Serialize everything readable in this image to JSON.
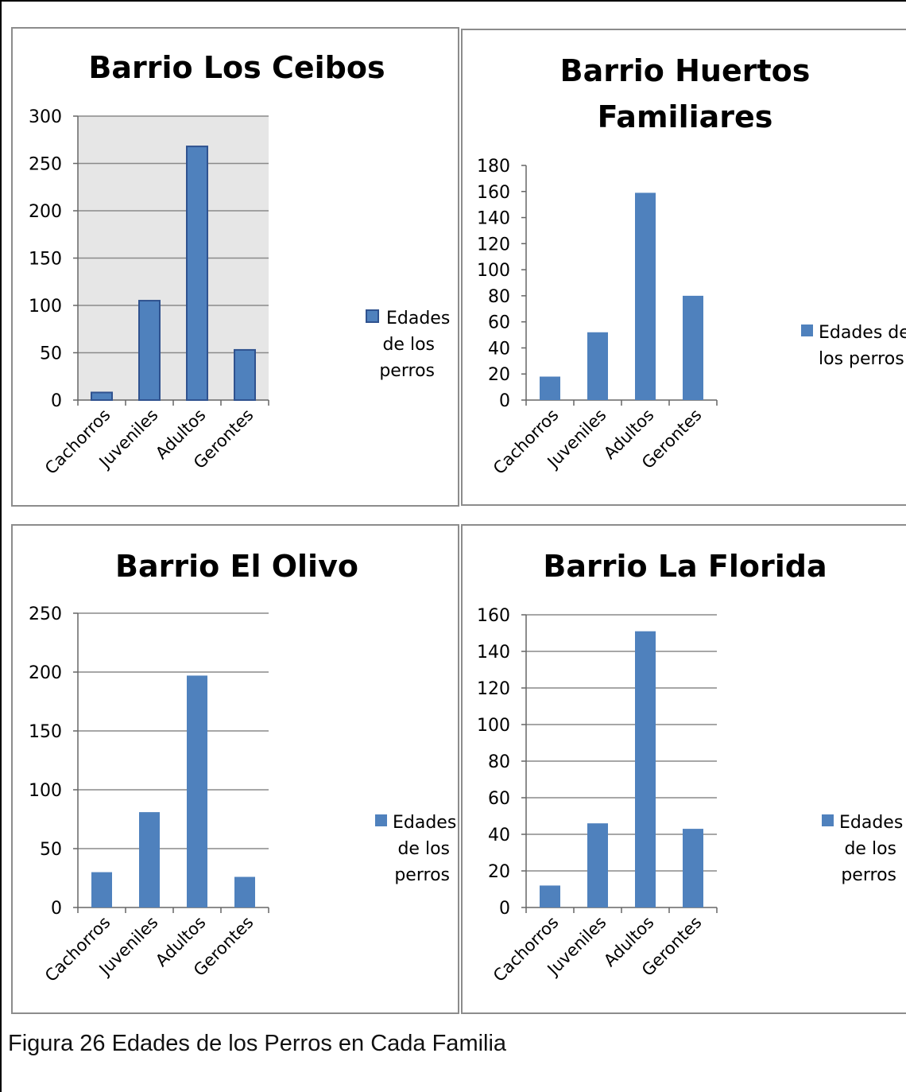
{
  "caption": "Figura 26 Edades de los Perros en Cada Familia",
  "colors": {
    "bar": "#4f81bd",
    "bar_border": "#2f528f",
    "plot_bg_shaded": "#e6e6e6",
    "grid": "#8a8a8a",
    "frame": "#8c8c8c"
  },
  "chart_data": [
    {
      "type": "bar",
      "title": "Barrio Los Ceibos",
      "categories": [
        "Cachorros",
        "Juveniles",
        "Adultos",
        "Gerontes"
      ],
      "series": [
        {
          "name": "Edades de los perros",
          "values": [
            8,
            105,
            268,
            53
          ]
        }
      ],
      "ylim": [
        0,
        300
      ],
      "yticks": [
        0,
        50,
        100,
        150,
        200,
        250,
        300
      ],
      "legend": "right",
      "grid": true,
      "plot_background": "shaded"
    },
    {
      "type": "bar",
      "title": "Barrio Huertos Familiares",
      "categories": [
        "Cachorros",
        "Juveniles",
        "Adultos",
        "Gerontes"
      ],
      "series": [
        {
          "name": "Edades de los perros",
          "values": [
            18,
            52,
            159,
            80
          ]
        }
      ],
      "ylim": [
        0,
        180
      ],
      "yticks": [
        0,
        20,
        40,
        60,
        80,
        100,
        120,
        140,
        160,
        180
      ],
      "legend": "right",
      "grid": false
    },
    {
      "type": "bar",
      "title": "Barrio El Olivo",
      "categories": [
        "Cachorros",
        "Juveniles",
        "Adultos",
        "Gerontes"
      ],
      "series": [
        {
          "name": "Edades de los perros",
          "values": [
            30,
            81,
            197,
            26
          ]
        }
      ],
      "ylim": [
        0,
        250
      ],
      "yticks": [
        0,
        50,
        100,
        150,
        200,
        250
      ],
      "legend": "right",
      "grid": true
    },
    {
      "type": "bar",
      "title": "Barrio La Florida",
      "categories": [
        "Cachorros",
        "Juveniles",
        "Adultos",
        "Gerontes"
      ],
      "series": [
        {
          "name": "Edades de los perros",
          "values": [
            12,
            46,
            151,
            43
          ]
        }
      ],
      "ylim": [
        0,
        160
      ],
      "yticks": [
        0,
        20,
        40,
        60,
        80,
        100,
        120,
        140,
        160
      ],
      "legend": "right",
      "grid": true
    }
  ]
}
